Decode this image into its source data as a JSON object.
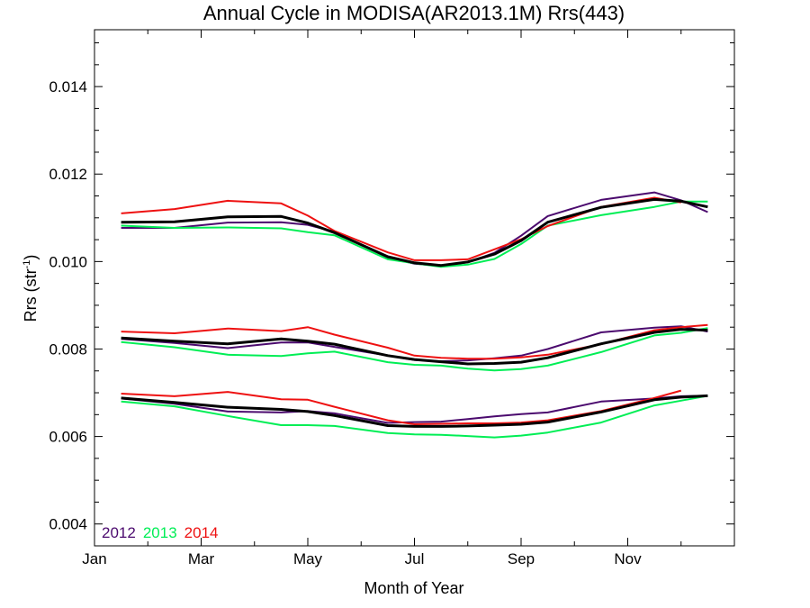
{
  "chart_data": {
    "type": "line",
    "title": "Annual Cycle in MODISA(AR2013.1M) Rrs(443)",
    "xlabel": "Month of Year",
    "ylabel": "Rrs (str",
    "ylabel_sup": "-1",
    "ylabel_close": ")",
    "xlim": [
      0,
      12
    ],
    "ylim": [
      0.0035,
      0.0153
    ],
    "xticks": [
      {
        "value": 0,
        "label": "Jan"
      },
      {
        "value": 2,
        "label": "Mar"
      },
      {
        "value": 4,
        "label": "May"
      },
      {
        "value": 6,
        "label": "Jul"
      },
      {
        "value": 8,
        "label": "Sep"
      },
      {
        "value": 10,
        "label": "Nov"
      }
    ],
    "yticks": [
      {
        "value": 0.004,
        "label": "0.004"
      },
      {
        "value": 0.006,
        "label": "0.006"
      },
      {
        "value": 0.008,
        "label": "0.008"
      },
      {
        "value": 0.01,
        "label": "0.010"
      },
      {
        "value": 0.012,
        "label": "0.012"
      },
      {
        "value": 0.014,
        "label": "0.014"
      }
    ],
    "legend": {
      "placement": "bottom-left",
      "entries": [
        {
          "name": "2012",
          "color": "#4b0a6e"
        },
        {
          "name": "2013",
          "color": "#00ee55"
        },
        {
          "name": "2014",
          "color": "#ee1111"
        }
      ]
    },
    "x": [
      0.5,
      1.5,
      2.5,
      3.5,
      4.0,
      4.5,
      5.5,
      6.0,
      6.5,
      7.0,
      7.5,
      8.0,
      8.5,
      9.5,
      10.5,
      11.0,
      11.5
    ],
    "series": [
      {
        "name": "2012",
        "group": "upper",
        "color": "#4b0a6e",
        "width": 2,
        "values": [
          0.01077,
          0.01077,
          0.01089,
          0.0109,
          0.01084,
          0.01068,
          0.01009,
          0.00995,
          0.0099,
          0.00998,
          0.0102,
          0.01059,
          0.01104,
          0.01141,
          0.01158,
          0.0114,
          0.01113
        ]
      },
      {
        "name": "2013",
        "group": "upper",
        "color": "#00ee55",
        "width": 2,
        "values": [
          0.01082,
          0.01077,
          0.01078,
          0.01076,
          0.01067,
          0.0106,
          0.01005,
          0.00996,
          0.00988,
          0.00993,
          0.01006,
          0.0104,
          0.01082,
          0.01106,
          0.01125,
          0.01137,
          0.01137
        ]
      },
      {
        "name": "2014",
        "group": "upper",
        "color": "#ee1111",
        "width": 2,
        "values": [
          0.0111,
          0.0112,
          0.01139,
          0.01133,
          0.01105,
          0.0107,
          0.01021,
          0.01003,
          0.01003,
          0.01005,
          0.01028,
          0.01051,
          0.01081,
          0.01125,
          0.01146,
          0.01135,
          null
        ]
      },
      {
        "name": "",
        "group": "upper",
        "color": "#000000",
        "width": 3,
        "values": [
          0.0109,
          0.01091,
          0.01102,
          0.01103,
          0.01088,
          0.01066,
          0.01011,
          0.00997,
          0.00991,
          0.00999,
          0.01017,
          0.01048,
          0.0109,
          0.01124,
          0.01142,
          0.01138,
          0.01125
        ]
      },
      {
        "name": "2012",
        "group": "middle",
        "color": "#4b0a6e",
        "width": 2,
        "values": [
          0.00823,
          0.00814,
          0.00802,
          0.00815,
          0.00815,
          0.00805,
          0.00785,
          0.00775,
          0.00772,
          0.00774,
          0.00779,
          0.00785,
          0.008,
          0.00838,
          0.00849,
          0.00852,
          0.0084
        ]
      },
      {
        "name": "2013",
        "group": "middle",
        "color": "#00ee55",
        "width": 2,
        "values": [
          0.00816,
          0.00804,
          0.00787,
          0.00784,
          0.0079,
          0.00794,
          0.0077,
          0.00764,
          0.00762,
          0.00755,
          0.00751,
          0.00754,
          0.00762,
          0.00793,
          0.00831,
          0.00837,
          0.00848
        ]
      },
      {
        "name": "2014",
        "group": "middle",
        "color": "#ee1111",
        "width": 2,
        "values": [
          0.0084,
          0.00836,
          0.00847,
          0.00841,
          0.0085,
          0.00833,
          0.00803,
          0.00785,
          0.0078,
          0.00778,
          0.00778,
          0.00781,
          0.00787,
          0.00811,
          0.00843,
          0.0085,
          0.00855
        ]
      },
      {
        "name": "",
        "group": "middle",
        "color": "#000000",
        "width": 3,
        "values": [
          0.00825,
          0.00818,
          0.00812,
          0.00823,
          0.00818,
          0.00811,
          0.00785,
          0.00776,
          0.00771,
          0.00766,
          0.00767,
          0.0077,
          0.0078,
          0.00812,
          0.00838,
          0.00845,
          0.00843
        ]
      },
      {
        "name": "2012",
        "group": "lower",
        "color": "#4b0a6e",
        "width": 2,
        "values": [
          0.00687,
          0.00675,
          0.00657,
          0.00655,
          0.00658,
          0.00653,
          0.00631,
          0.00633,
          0.00634,
          0.0064,
          0.00646,
          0.00651,
          0.00655,
          0.0068,
          0.00687,
          0.00692,
          0.00693
        ]
      },
      {
        "name": "2013",
        "group": "lower",
        "color": "#00ee55",
        "width": 2,
        "values": [
          0.0068,
          0.00669,
          0.00647,
          0.00626,
          0.00626,
          0.00624,
          0.00608,
          0.00605,
          0.00604,
          0.00601,
          0.00598,
          0.00602,
          0.00609,
          0.00632,
          0.00671,
          0.00682,
          0.00693
        ]
      },
      {
        "name": "2014",
        "group": "lower",
        "color": "#ee1111",
        "width": 2,
        "values": [
          0.00698,
          0.00692,
          0.00702,
          0.00685,
          0.00684,
          0.00668,
          0.00637,
          0.00628,
          0.00629,
          0.0063,
          0.0063,
          0.00632,
          0.00637,
          0.00658,
          0.00688,
          0.00705,
          null
        ]
      },
      {
        "name": "",
        "group": "lower",
        "color": "#000000",
        "width": 3,
        "values": [
          0.00688,
          0.00678,
          0.00667,
          0.00662,
          0.00657,
          0.00648,
          0.00625,
          0.00623,
          0.00623,
          0.00624,
          0.00626,
          0.00628,
          0.00633,
          0.00656,
          0.00684,
          0.0069,
          0.00693
        ]
      }
    ]
  }
}
